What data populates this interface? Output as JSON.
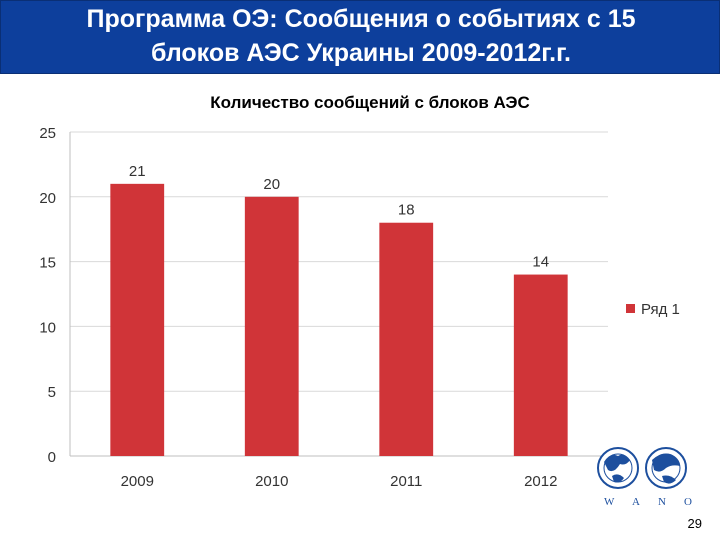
{
  "slide": {
    "title_line1": "Программа ОЭ: Сообщения о событиях с 15",
    "title_line2": "блоков АЭС Украины 2009-2012г.г.",
    "page_number": "29",
    "logo_letters": [
      "W",
      "A",
      "N",
      "O"
    ]
  },
  "colors": {
    "title_bar": "#0d3f9c",
    "bar": "#d03438",
    "grid": "#d9d9d9"
  },
  "chart_data": {
    "type": "bar",
    "title": "Количество сообщений с блоков АЭС",
    "categories": [
      "2009",
      "2010",
      "2011",
      "2012"
    ],
    "series": [
      {
        "name": "Ряд 1",
        "values": [
          21,
          20,
          18,
          14
        ]
      }
    ],
    "ylim": [
      0,
      25
    ],
    "yticks": [
      0,
      5,
      10,
      15,
      20,
      25
    ],
    "grid": true,
    "legend": "right",
    "data_labels": true
  }
}
